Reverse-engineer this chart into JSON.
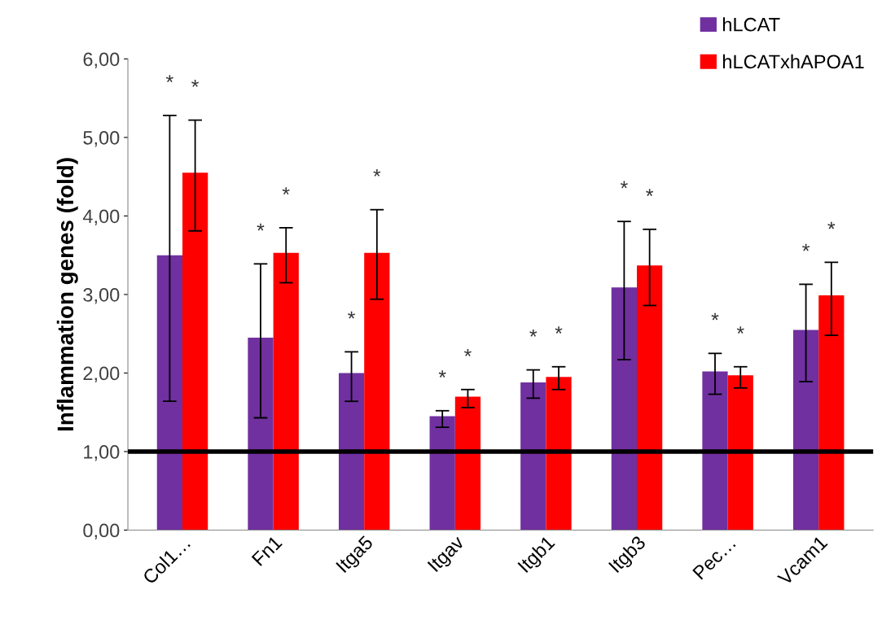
{
  "chart_data": {
    "type": "bar",
    "ylabel": "Inflammation genes (fold)",
    "categories": [
      "Col1…",
      "Fn1",
      "Itga5",
      "Itgav",
      "Itgb1",
      "Itgb3",
      "Pec…",
      "Vcam1"
    ],
    "series": [
      {
        "name": "hLCAT",
        "color": "#7030a0",
        "values": [
          3.5,
          2.45,
          2.0,
          1.45,
          1.88,
          3.09,
          2.02,
          2.55
        ],
        "errors": [
          [
            1.64,
            5.28
          ],
          [
            1.43,
            3.39
          ],
          [
            1.64,
            2.27
          ],
          [
            1.31,
            1.52
          ],
          [
            1.68,
            2.04
          ],
          [
            2.17,
            3.93
          ],
          [
            1.73,
            2.25
          ],
          [
            1.89,
            3.13
          ]
        ]
      },
      {
        "name": "hLCATxhAPOA1",
        "color": "#ff0000",
        "values": [
          4.55,
          3.53,
          3.53,
          1.7,
          1.95,
          3.37,
          1.97,
          2.99
        ],
        "errors": [
          [
            3.81,
            5.22
          ],
          [
            3.15,
            3.85
          ],
          [
            2.94,
            4.08
          ],
          [
            1.56,
            1.79
          ],
          [
            1.79,
            2.08
          ],
          [
            2.86,
            3.83
          ],
          [
            1.81,
            2.08
          ],
          [
            2.48,
            3.41
          ]
        ]
      }
    ],
    "ylim": [
      0,
      6
    ],
    "yticks": [
      {
        "value": 0,
        "label": "0,00"
      },
      {
        "value": 1,
        "label": "1,00"
      },
      {
        "value": 2,
        "label": "2,00"
      },
      {
        "value": 3,
        "label": "3,00"
      },
      {
        "value": 4,
        "label": "4,00"
      },
      {
        "value": 5,
        "label": "5,00"
      },
      {
        "value": 6,
        "label": "6,00"
      }
    ],
    "ref_lines": [
      {
        "axis": "y",
        "value": 1,
        "color": "#000000"
      }
    ],
    "annotations": [
      "*",
      "*",
      "*",
      "*",
      "*",
      "*",
      "*",
      "*",
      "*",
      "*",
      "*",
      "*",
      "*",
      "*",
      "*",
      "*"
    ],
    "grid": false,
    "legend": "top right"
  }
}
